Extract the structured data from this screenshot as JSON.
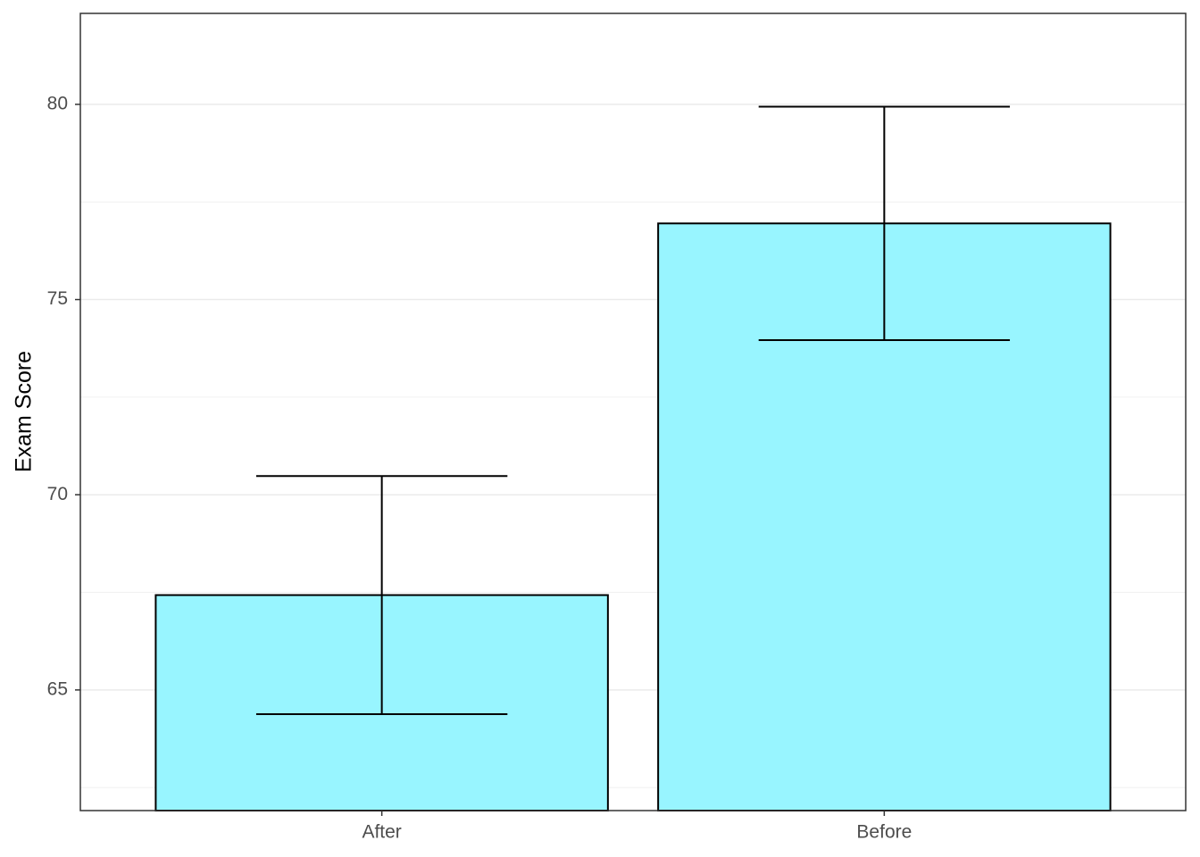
{
  "chart_data": {
    "type": "bar",
    "y_label": "Exam Score",
    "categories": [
      "After",
      "Before"
    ],
    "values": [
      67.43,
      76.95
    ],
    "errors": [
      3.05,
      2.99
    ],
    "color": "#98f5ff",
    "edge_color": "#000000",
    "ylim": [
      61.91,
      82.33
    ],
    "yticks": [
      65,
      70,
      75,
      80
    ],
    "minor_grid": [
      62.5,
      67.5,
      72.5,
      77.5
    ],
    "grid": true
  }
}
